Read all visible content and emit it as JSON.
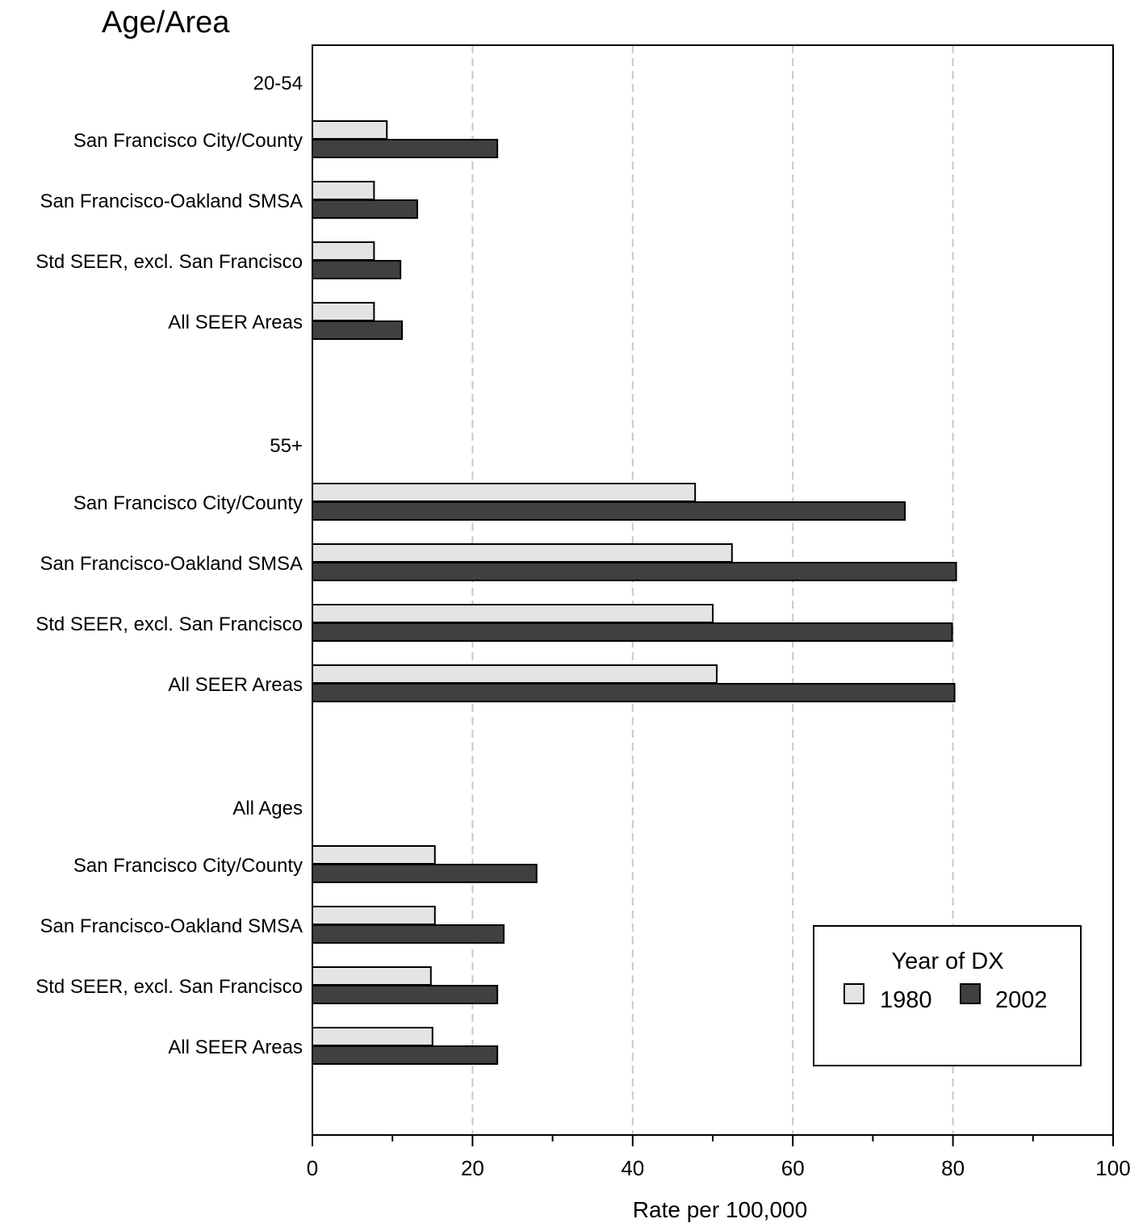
{
  "chart_data": {
    "type": "bar",
    "orientation": "horizontal",
    "title": "Age/Area",
    "xlabel": "Rate per 100,000",
    "xlim": [
      0,
      100
    ],
    "xticks": [
      0,
      20,
      40,
      60,
      80,
      100
    ],
    "grid": "vertical dashed at major ticks",
    "legend": {
      "title": "Year of DX",
      "placement": "bottom-right",
      "entries": [
        "1980",
        "2002"
      ]
    },
    "colors": {
      "1980": "#e4e4e4",
      "2002": "#404040"
    },
    "groups": [
      {
        "label": "20-54",
        "categories": [
          "San Francisco City/County",
          "San Francisco-Oakland SMSA",
          "Std SEER, excl. San Francisco",
          "All SEER Areas"
        ],
        "series": [
          {
            "name": "1980",
            "values": [
              9.3,
              7.7,
              7.7,
              7.7
            ]
          },
          {
            "name": "2002",
            "values": [
              23.1,
              13.1,
              11.0,
              11.2
            ]
          }
        ]
      },
      {
        "label": "55+",
        "categories": [
          "San Francisco City/County",
          "San Francisco-Oakland SMSA",
          "Std SEER, excl. San Francisco",
          "All SEER Areas"
        ],
        "series": [
          {
            "name": "1980",
            "values": [
              47.8,
              52.4,
              50.0,
              50.5
            ]
          },
          {
            "name": "2002",
            "values": [
              74.0,
              80.4,
              79.9,
              80.2
            ]
          }
        ]
      },
      {
        "label": "All Ages",
        "categories": [
          "San Francisco City/County",
          "San Francisco-Oakland SMSA",
          "Std SEER, excl. San Francisco",
          "All SEER Areas"
        ],
        "series": [
          {
            "name": "1980",
            "values": [
              15.3,
              15.3,
              14.8,
              15.0
            ]
          },
          {
            "name": "2002",
            "values": [
              28.0,
              23.9,
              23.1,
              23.1
            ]
          }
        ]
      }
    ]
  }
}
